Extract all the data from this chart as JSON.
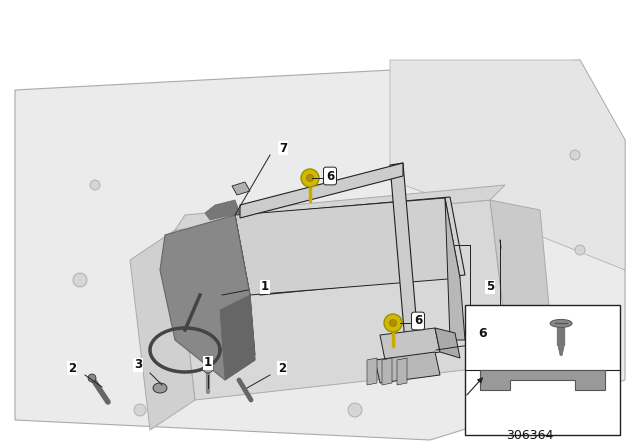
{
  "bg_color": "#ffffff",
  "diagram_number": "306364",
  "body_color": "#ebebeb",
  "body_edge": "#aaaaaa",
  "tray_color": "#e2e2e2",
  "battery_top": "#d0d0d0",
  "battery_side": "#c0c0c0",
  "battery_dark": "#b0b0b0",
  "bracket_color": "#888888",
  "bracket_dark": "#666666",
  "bar_color": "#cccccc",
  "clamp_color": "#b8b8b8",
  "yellow": "#d4b800",
  "line_color": "#222222",
  "text_color": "#111111",
  "label_fontsize": 8.5,
  "num_fontsize": 9.0
}
